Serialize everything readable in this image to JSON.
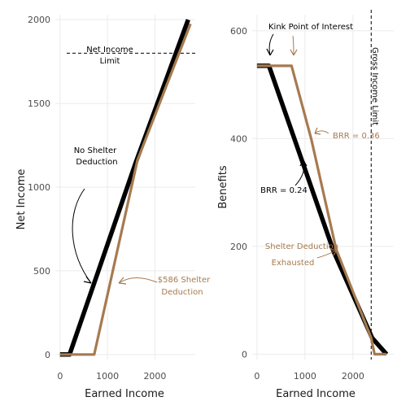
{
  "colors": {
    "no_shelter_line": "#000000",
    "shelter_line": "#a67a50",
    "grid": "#ebebeb",
    "annotation_black": "#000000",
    "annotation_tan": "#a67a50"
  },
  "chart_data": [
    {
      "type": "line",
      "panel": "left",
      "xlabel": "Earned Income",
      "ylabel": "Net Income",
      "xlim": [
        -100,
        2850
      ],
      "ylim": [
        -30,
        2030
      ],
      "x_ticks": [
        0,
        1000,
        2000
      ],
      "y_ticks": [
        0,
        500,
        1000,
        1500,
        2000
      ],
      "x_tick_labels": [
        "0",
        "1000",
        "2000"
      ],
      "y_tick_labels": [
        "0",
        "500",
        "1000",
        "1500",
        "2000"
      ],
      "grid": true,
      "series": [
        {
          "color": "#000000",
          "width_class": "thick",
          "x": [
            0,
            200,
            1600,
            2700
          ],
          "y": [
            0,
            0,
            1150,
            2000
          ]
        },
        {
          "color": "#a67a50",
          "width_class": "medium",
          "x": [
            0,
            720,
            1630,
            2750
          ],
          "y": [
            0,
            0,
            1160,
            1975
          ]
        }
      ],
      "reference_line": {
        "orientation": "horizontal",
        "value": 1800,
        "style": "dashed",
        "label_line1": "Net Income",
        "label_line2": "Limit"
      },
      "annotations": [
        {
          "text_line1": "No Shelter",
          "text_line2": "Deduction",
          "color": "#000000"
        },
        {
          "text_line1": "$586 Shelter",
          "text_line2": "Deduction",
          "color": "#a67a50"
        }
      ]
    },
    {
      "type": "line",
      "panel": "right",
      "xlabel": "Earned Income",
      "ylabel": "Benefits",
      "xlim": [
        -100,
        2850
      ],
      "ylim": [
        -10,
        630
      ],
      "x_ticks": [
        0,
        1000,
        2000
      ],
      "y_ticks": [
        0,
        200,
        400,
        600
      ],
      "x_tick_labels": [
        "0",
        "1000",
        "2000"
      ],
      "y_tick_labels": [
        "0",
        "200",
        "400",
        "600"
      ],
      "grid": true,
      "series": [
        {
          "color": "#000000",
          "width_class": "thick",
          "x": [
            0,
            250,
            1600,
            2400,
            2700
          ],
          "y": [
            535,
            535,
            190,
            30,
            0
          ]
        },
        {
          "color": "#a67a50",
          "width_class": "medium",
          "x": [
            0,
            720,
            1130,
            1650,
            2380,
            2450,
            2700
          ],
          "y": [
            535,
            535,
            400,
            195,
            30,
            0,
            0
          ]
        }
      ],
      "reference_line": {
        "orientation": "vertical",
        "value": 2380,
        "style": "dashed",
        "label": "Gross Income Limit"
      },
      "annotations": [
        {
          "text": "Kink Point of Interest",
          "color": "#000000"
        },
        {
          "text": "BRR = 0.36",
          "color": "#a67a50"
        },
        {
          "text": "BRR = 0.24",
          "color": "#000000"
        },
        {
          "text_line1": "Shelter Deduction",
          "text_line2": "Exhausted",
          "color": "#a67a50"
        }
      ]
    }
  ]
}
